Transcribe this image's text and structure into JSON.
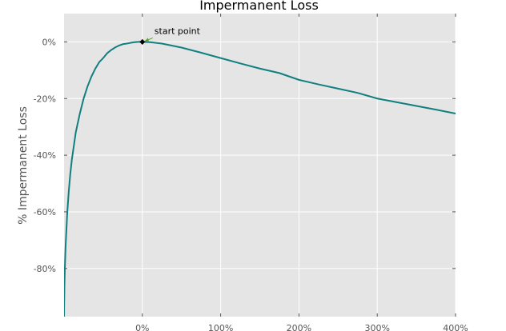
{
  "chart_data": {
    "type": "line",
    "title": "Impermanent Loss",
    "xlabel": "",
    "ylabel": "% Impermanent Loss",
    "xlim": [
      -100,
      400
    ],
    "ylim": [
      -97,
      10
    ],
    "grid": true,
    "x_ticks": [
      0,
      100,
      200,
      300,
      400
    ],
    "x_tick_labels": [
      "0%",
      "100%",
      "200%",
      "300%",
      "400%"
    ],
    "y_ticks": [
      0,
      -20,
      -40,
      -60,
      -80
    ],
    "y_tick_labels": [
      "0%",
      "-20%",
      "-40%",
      "-60%",
      "-80%"
    ],
    "line_color": "#117f7f",
    "background_color": "#e5e5e5",
    "grid_color": "#ffffff",
    "series": [
      {
        "x": [
          -100,
          -99.9,
          -99.5,
          -99,
          -98,
          -96,
          -94,
          -92,
          -90,
          -85,
          -80,
          -75,
          -70,
          -65,
          -60,
          -55,
          -50,
          -45,
          -40,
          -35,
          -30,
          -25,
          -20,
          -15,
          -10,
          -5,
          0,
          10,
          25,
          50,
          75,
          100,
          125,
          150,
          175,
          200,
          225,
          250,
          275,
          300,
          325,
          350,
          375,
          400
        ],
        "y": [
          -100,
          -93.7,
          -85.9,
          -80.1,
          -72.0,
          -60.8,
          -52.8,
          -46.5,
          -41.5,
          -31.9,
          -25.5,
          -20.0,
          -15.7,
          -12.2,
          -9.4,
          -7.1,
          -5.7,
          -4.0,
          -2.9,
          -2.0,
          -1.3,
          -0.8,
          -0.6,
          -0.3,
          -0.1,
          0.0,
          0.0,
          -0.1,
          -0.6,
          -2.0,
          -3.8,
          -5.7,
          -7.6,
          -9.4,
          -11.0,
          -13.4,
          -15.0,
          -16.5,
          -18.0,
          -20.0,
          -21.3,
          -22.6,
          -23.9,
          -25.3
        ]
      }
    ],
    "annotations": [
      {
        "text": "start point",
        "x": 0,
        "y": 0,
        "marker": "diamond",
        "marker_color": "#000000",
        "arrow_color": "#5aa02c"
      }
    ]
  }
}
